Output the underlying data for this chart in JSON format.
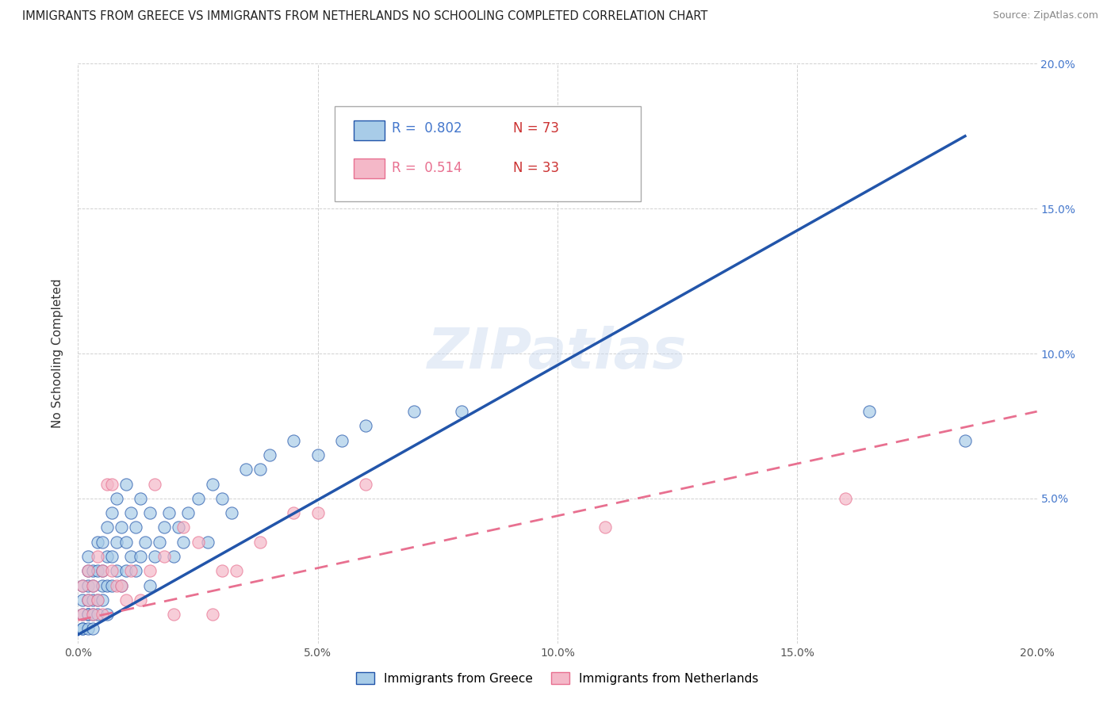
{
  "title": "IMMIGRANTS FROM GREECE VS IMMIGRANTS FROM NETHERLANDS NO SCHOOLING COMPLETED CORRELATION CHART",
  "source": "Source: ZipAtlas.com",
  "ylabel": "No Schooling Completed",
  "xlim": [
    0.0,
    0.2
  ],
  "ylim": [
    0.0,
    0.2
  ],
  "xticks": [
    0.0,
    0.05,
    0.1,
    0.15,
    0.2
  ],
  "yticks": [
    0.0,
    0.05,
    0.1,
    0.15,
    0.2
  ],
  "xticklabels": [
    "0.0%",
    "5.0%",
    "10.0%",
    "15.0%",
    "20.0%"
  ],
  "yticklabels_right": [
    "",
    "5.0%",
    "10.0%",
    "15.0%",
    "20.0%"
  ],
  "legend1_r_label": "R =  0.802",
  "legend1_n_label": "N = 73",
  "legend2_r_label": "R =  0.514",
  "legend2_n_label": "N = 33",
  "series1_color": "#a8cce8",
  "series2_color": "#f4b8c8",
  "line1_color": "#2255aa",
  "line2_color": "#e87090",
  "watermark": "ZIPatlas",
  "legend_label1": "Immigrants from Greece",
  "legend_label2": "Immigrants from Netherlands",
  "greece_x": [
    0.001,
    0.001,
    0.001,
    0.001,
    0.001,
    0.002,
    0.002,
    0.002,
    0.002,
    0.002,
    0.002,
    0.002,
    0.003,
    0.003,
    0.003,
    0.003,
    0.003,
    0.004,
    0.004,
    0.004,
    0.004,
    0.005,
    0.005,
    0.005,
    0.005,
    0.006,
    0.006,
    0.006,
    0.006,
    0.007,
    0.007,
    0.007,
    0.008,
    0.008,
    0.008,
    0.009,
    0.009,
    0.01,
    0.01,
    0.01,
    0.011,
    0.011,
    0.012,
    0.012,
    0.013,
    0.013,
    0.014,
    0.015,
    0.015,
    0.016,
    0.017,
    0.018,
    0.019,
    0.02,
    0.021,
    0.022,
    0.023,
    0.025,
    0.027,
    0.028,
    0.03,
    0.032,
    0.035,
    0.038,
    0.04,
    0.045,
    0.05,
    0.055,
    0.06,
    0.07,
    0.08,
    0.165,
    0.185
  ],
  "greece_y": [
    0.005,
    0.01,
    0.015,
    0.02,
    0.005,
    0.01,
    0.015,
    0.02,
    0.005,
    0.01,
    0.025,
    0.03,
    0.01,
    0.015,
    0.02,
    0.025,
    0.005,
    0.01,
    0.015,
    0.025,
    0.035,
    0.015,
    0.02,
    0.025,
    0.035,
    0.01,
    0.02,
    0.03,
    0.04,
    0.02,
    0.03,
    0.045,
    0.025,
    0.035,
    0.05,
    0.02,
    0.04,
    0.025,
    0.035,
    0.055,
    0.03,
    0.045,
    0.025,
    0.04,
    0.03,
    0.05,
    0.035,
    0.02,
    0.045,
    0.03,
    0.035,
    0.04,
    0.045,
    0.03,
    0.04,
    0.035,
    0.045,
    0.05,
    0.035,
    0.055,
    0.05,
    0.045,
    0.06,
    0.06,
    0.065,
    0.07,
    0.065,
    0.07,
    0.075,
    0.08,
    0.08,
    0.08,
    0.07
  ],
  "netherlands_x": [
    0.001,
    0.001,
    0.002,
    0.002,
    0.003,
    0.003,
    0.004,
    0.004,
    0.005,
    0.005,
    0.006,
    0.007,
    0.007,
    0.008,
    0.009,
    0.01,
    0.011,
    0.013,
    0.015,
    0.016,
    0.018,
    0.02,
    0.022,
    0.025,
    0.028,
    0.03,
    0.033,
    0.038,
    0.045,
    0.05,
    0.06,
    0.11,
    0.16
  ],
  "netherlands_y": [
    0.01,
    0.02,
    0.015,
    0.025,
    0.01,
    0.02,
    0.015,
    0.03,
    0.01,
    0.025,
    0.055,
    0.055,
    0.025,
    0.02,
    0.02,
    0.015,
    0.025,
    0.015,
    0.025,
    0.055,
    0.03,
    0.01,
    0.04,
    0.035,
    0.01,
    0.025,
    0.025,
    0.035,
    0.045,
    0.045,
    0.055,
    0.04,
    0.05
  ],
  "greece_line_x": [
    0.0,
    0.185
  ],
  "greece_line_y": [
    0.003,
    0.175
  ],
  "netherlands_line_x": [
    0.0,
    0.2
  ],
  "netherlands_line_y": [
    0.008,
    0.08
  ]
}
